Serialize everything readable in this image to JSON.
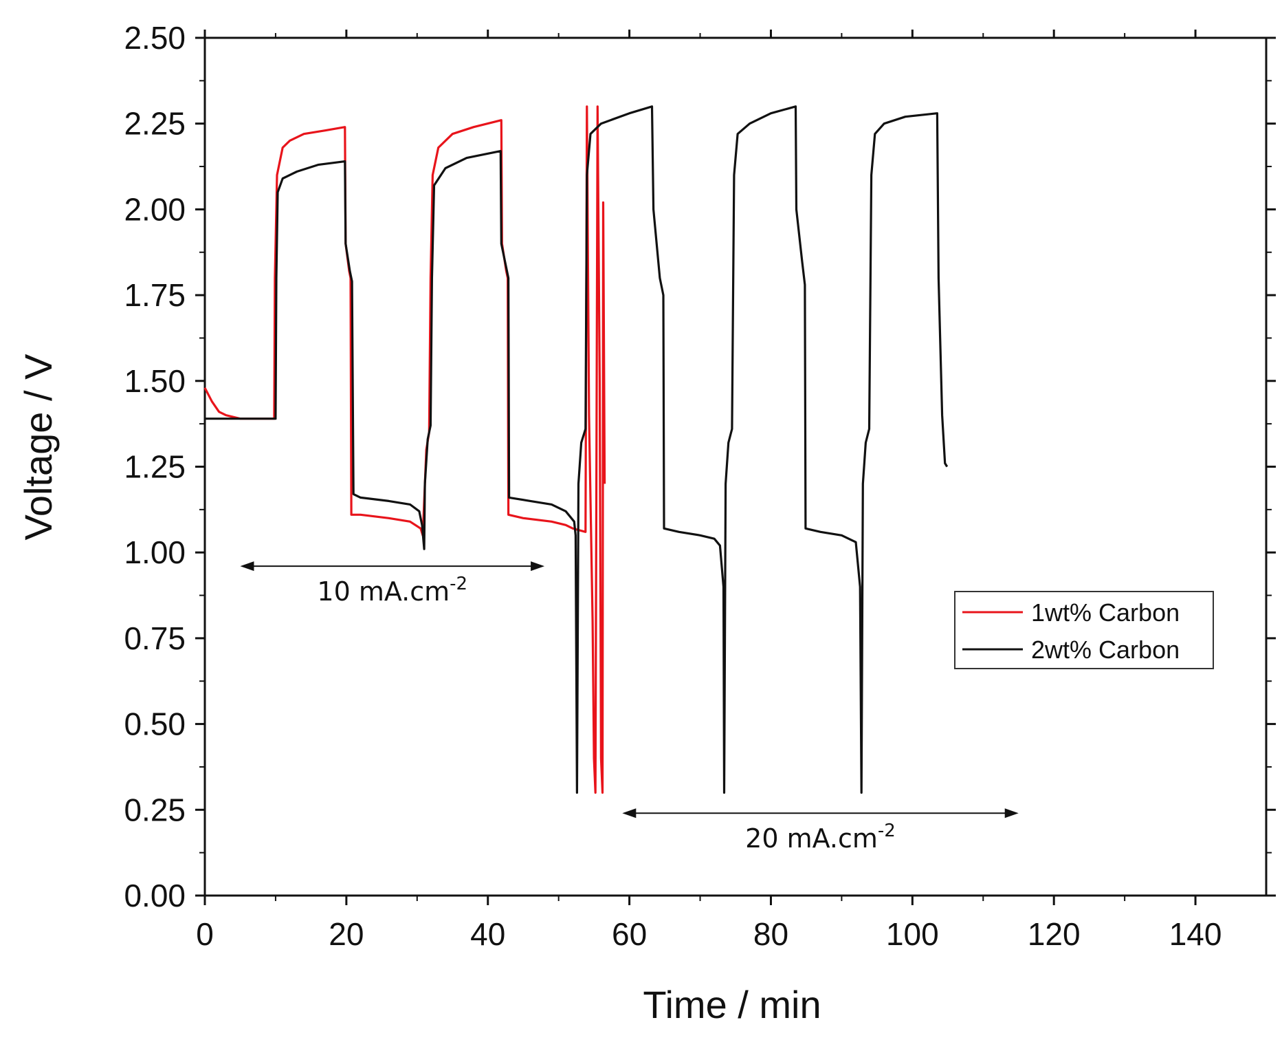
{
  "chart_data": {
    "type": "line",
    "title": "",
    "xlabel": "Time / min",
    "ylabel": "Voltage / V",
    "xlim": [
      0,
      150
    ],
    "ylim": [
      0,
      2.5
    ],
    "x_ticks": [
      0,
      20,
      40,
      60,
      80,
      100,
      120,
      140
    ],
    "x_tick_labels": [
      "0",
      "20",
      "40",
      "60",
      "80",
      "100",
      "120",
      "140"
    ],
    "y_ticks": [
      0,
      0.25,
      0.5,
      0.75,
      1.0,
      1.25,
      1.5,
      1.75,
      2.0,
      2.25,
      2.5
    ],
    "y_tick_labels": [
      "0.00",
      "0.25",
      "0.50",
      "0.75",
      "1.00",
      "1.25",
      "1.50",
      "1.75",
      "2.00",
      "2.25",
      "2.50"
    ],
    "grid": false,
    "legend_position": "center-right",
    "series": [
      {
        "name": "1wt% Carbon",
        "color": "#e8141b",
        "points": [
          [
            0,
            1.48
          ],
          [
            1,
            1.44
          ],
          [
            2,
            1.41
          ],
          [
            3,
            1.4
          ],
          [
            5,
            1.39
          ],
          [
            9.8,
            1.39
          ],
          [
            9.9,
            1.8
          ],
          [
            10.2,
            2.1
          ],
          [
            11,
            2.18
          ],
          [
            12,
            2.2
          ],
          [
            14,
            2.22
          ],
          [
            17,
            2.23
          ],
          [
            19.8,
            2.24
          ],
          [
            19.9,
            1.9
          ],
          [
            20.4,
            1.82
          ],
          [
            20.6,
            1.8
          ],
          [
            20.7,
            1.11
          ],
          [
            22,
            1.11
          ],
          [
            26,
            1.1
          ],
          [
            29,
            1.09
          ],
          [
            30.5,
            1.07
          ],
          [
            30.8,
            1.05
          ],
          [
            31.0,
            1.15
          ],
          [
            31.3,
            1.3
          ],
          [
            31.7,
            1.35
          ],
          [
            31.9,
            1.8
          ],
          [
            32.2,
            2.1
          ],
          [
            33,
            2.18
          ],
          [
            35,
            2.22
          ],
          [
            38,
            2.24
          ],
          [
            41.9,
            2.26
          ],
          [
            42.0,
            1.9
          ],
          [
            42.6,
            1.82
          ],
          [
            42.8,
            1.8
          ],
          [
            42.9,
            1.11
          ],
          [
            45,
            1.1
          ],
          [
            49,
            1.09
          ],
          [
            51,
            1.08
          ],
          [
            52,
            1.07
          ],
          [
            53.8,
            1.06
          ],
          [
            54.0,
            2.3
          ],
          [
            54.3,
            1.4
          ],
          [
            54.8,
            0.8
          ],
          [
            55.0,
            0.4
          ],
          [
            55.2,
            0.3
          ],
          [
            55.5,
            2.3
          ],
          [
            55.8,
            1.5
          ],
          [
            56.0,
            0.4
          ],
          [
            56.2,
            0.3
          ],
          [
            56.3,
            2.02
          ],
          [
            56.5,
            1.2
          ]
        ]
      },
      {
        "name": "2wt% Carbon",
        "color": "#111111",
        "points": [
          [
            0,
            1.39
          ],
          [
            5,
            1.39
          ],
          [
            10,
            1.39
          ],
          [
            10.1,
            1.8
          ],
          [
            10.3,
            2.05
          ],
          [
            11,
            2.09
          ],
          [
            13,
            2.11
          ],
          [
            16,
            2.13
          ],
          [
            19.8,
            2.14
          ],
          [
            19.9,
            1.9
          ],
          [
            20.5,
            1.82
          ],
          [
            20.8,
            1.79
          ],
          [
            21.0,
            1.17
          ],
          [
            22,
            1.16
          ],
          [
            26,
            1.15
          ],
          [
            29,
            1.14
          ],
          [
            30.3,
            1.12
          ],
          [
            30.7,
            1.08
          ],
          [
            31.0,
            1.01
          ],
          [
            31.1,
            1.2
          ],
          [
            31.5,
            1.33
          ],
          [
            31.9,
            1.37
          ],
          [
            32.1,
            1.8
          ],
          [
            32.4,
            2.07
          ],
          [
            34,
            2.12
          ],
          [
            37,
            2.15
          ],
          [
            41.8,
            2.17
          ],
          [
            41.9,
            1.9
          ],
          [
            42.6,
            1.83
          ],
          [
            42.9,
            1.8
          ],
          [
            43.0,
            1.16
          ],
          [
            46,
            1.15
          ],
          [
            49,
            1.14
          ],
          [
            51,
            1.12
          ],
          [
            52.2,
            1.09
          ],
          [
            52.4,
            1.05
          ],
          [
            52.6,
            0.3
          ],
          [
            52.8,
            1.2
          ],
          [
            53.2,
            1.32
          ],
          [
            53.8,
            1.36
          ],
          [
            54.0,
            2.1
          ],
          [
            54.5,
            2.22
          ],
          [
            56,
            2.25
          ],
          [
            60,
            2.28
          ],
          [
            63.2,
            2.3
          ],
          [
            63.4,
            2.0
          ],
          [
            64.3,
            1.8
          ],
          [
            64.8,
            1.75
          ],
          [
            64.9,
            1.07
          ],
          [
            67,
            1.06
          ],
          [
            70,
            1.05
          ],
          [
            72,
            1.04
          ],
          [
            72.8,
            1.02
          ],
          [
            73.3,
            0.9
          ],
          [
            73.4,
            0.3
          ],
          [
            73.6,
            1.2
          ],
          [
            74.0,
            1.32
          ],
          [
            74.5,
            1.36
          ],
          [
            74.8,
            2.1
          ],
          [
            75.3,
            2.22
          ],
          [
            77,
            2.25
          ],
          [
            80,
            2.28
          ],
          [
            83.5,
            2.3
          ],
          [
            83.6,
            2.0
          ],
          [
            84.4,
            1.85
          ],
          [
            84.8,
            1.78
          ],
          [
            84.9,
            1.07
          ],
          [
            87,
            1.06
          ],
          [
            90,
            1.05
          ],
          [
            92.0,
            1.03
          ],
          [
            92.6,
            0.9
          ],
          [
            92.8,
            0.3
          ],
          [
            93.0,
            1.2
          ],
          [
            93.4,
            1.32
          ],
          [
            93.9,
            1.36
          ],
          [
            94.2,
            2.1
          ],
          [
            94.7,
            2.22
          ],
          [
            96,
            2.25
          ],
          [
            99,
            2.27
          ],
          [
            103.5,
            2.28
          ],
          [
            103.7,
            1.8
          ],
          [
            104.2,
            1.4
          ],
          [
            104.6,
            1.26
          ],
          [
            104.9,
            1.25
          ]
        ]
      }
    ],
    "annotations": [
      {
        "id": "ann-10",
        "text": "10 mA.cm",
        "sup": "-2",
        "arrow_from": 5,
        "arrow_to": 48,
        "arrow_y": 0.96,
        "text_y": 0.86
      },
      {
        "id": "ann-20",
        "text": "20 mA.cm",
        "sup": "-2",
        "arrow_from": 59,
        "arrow_to": 115,
        "arrow_y": 0.24,
        "text_y": 0.14
      }
    ]
  }
}
